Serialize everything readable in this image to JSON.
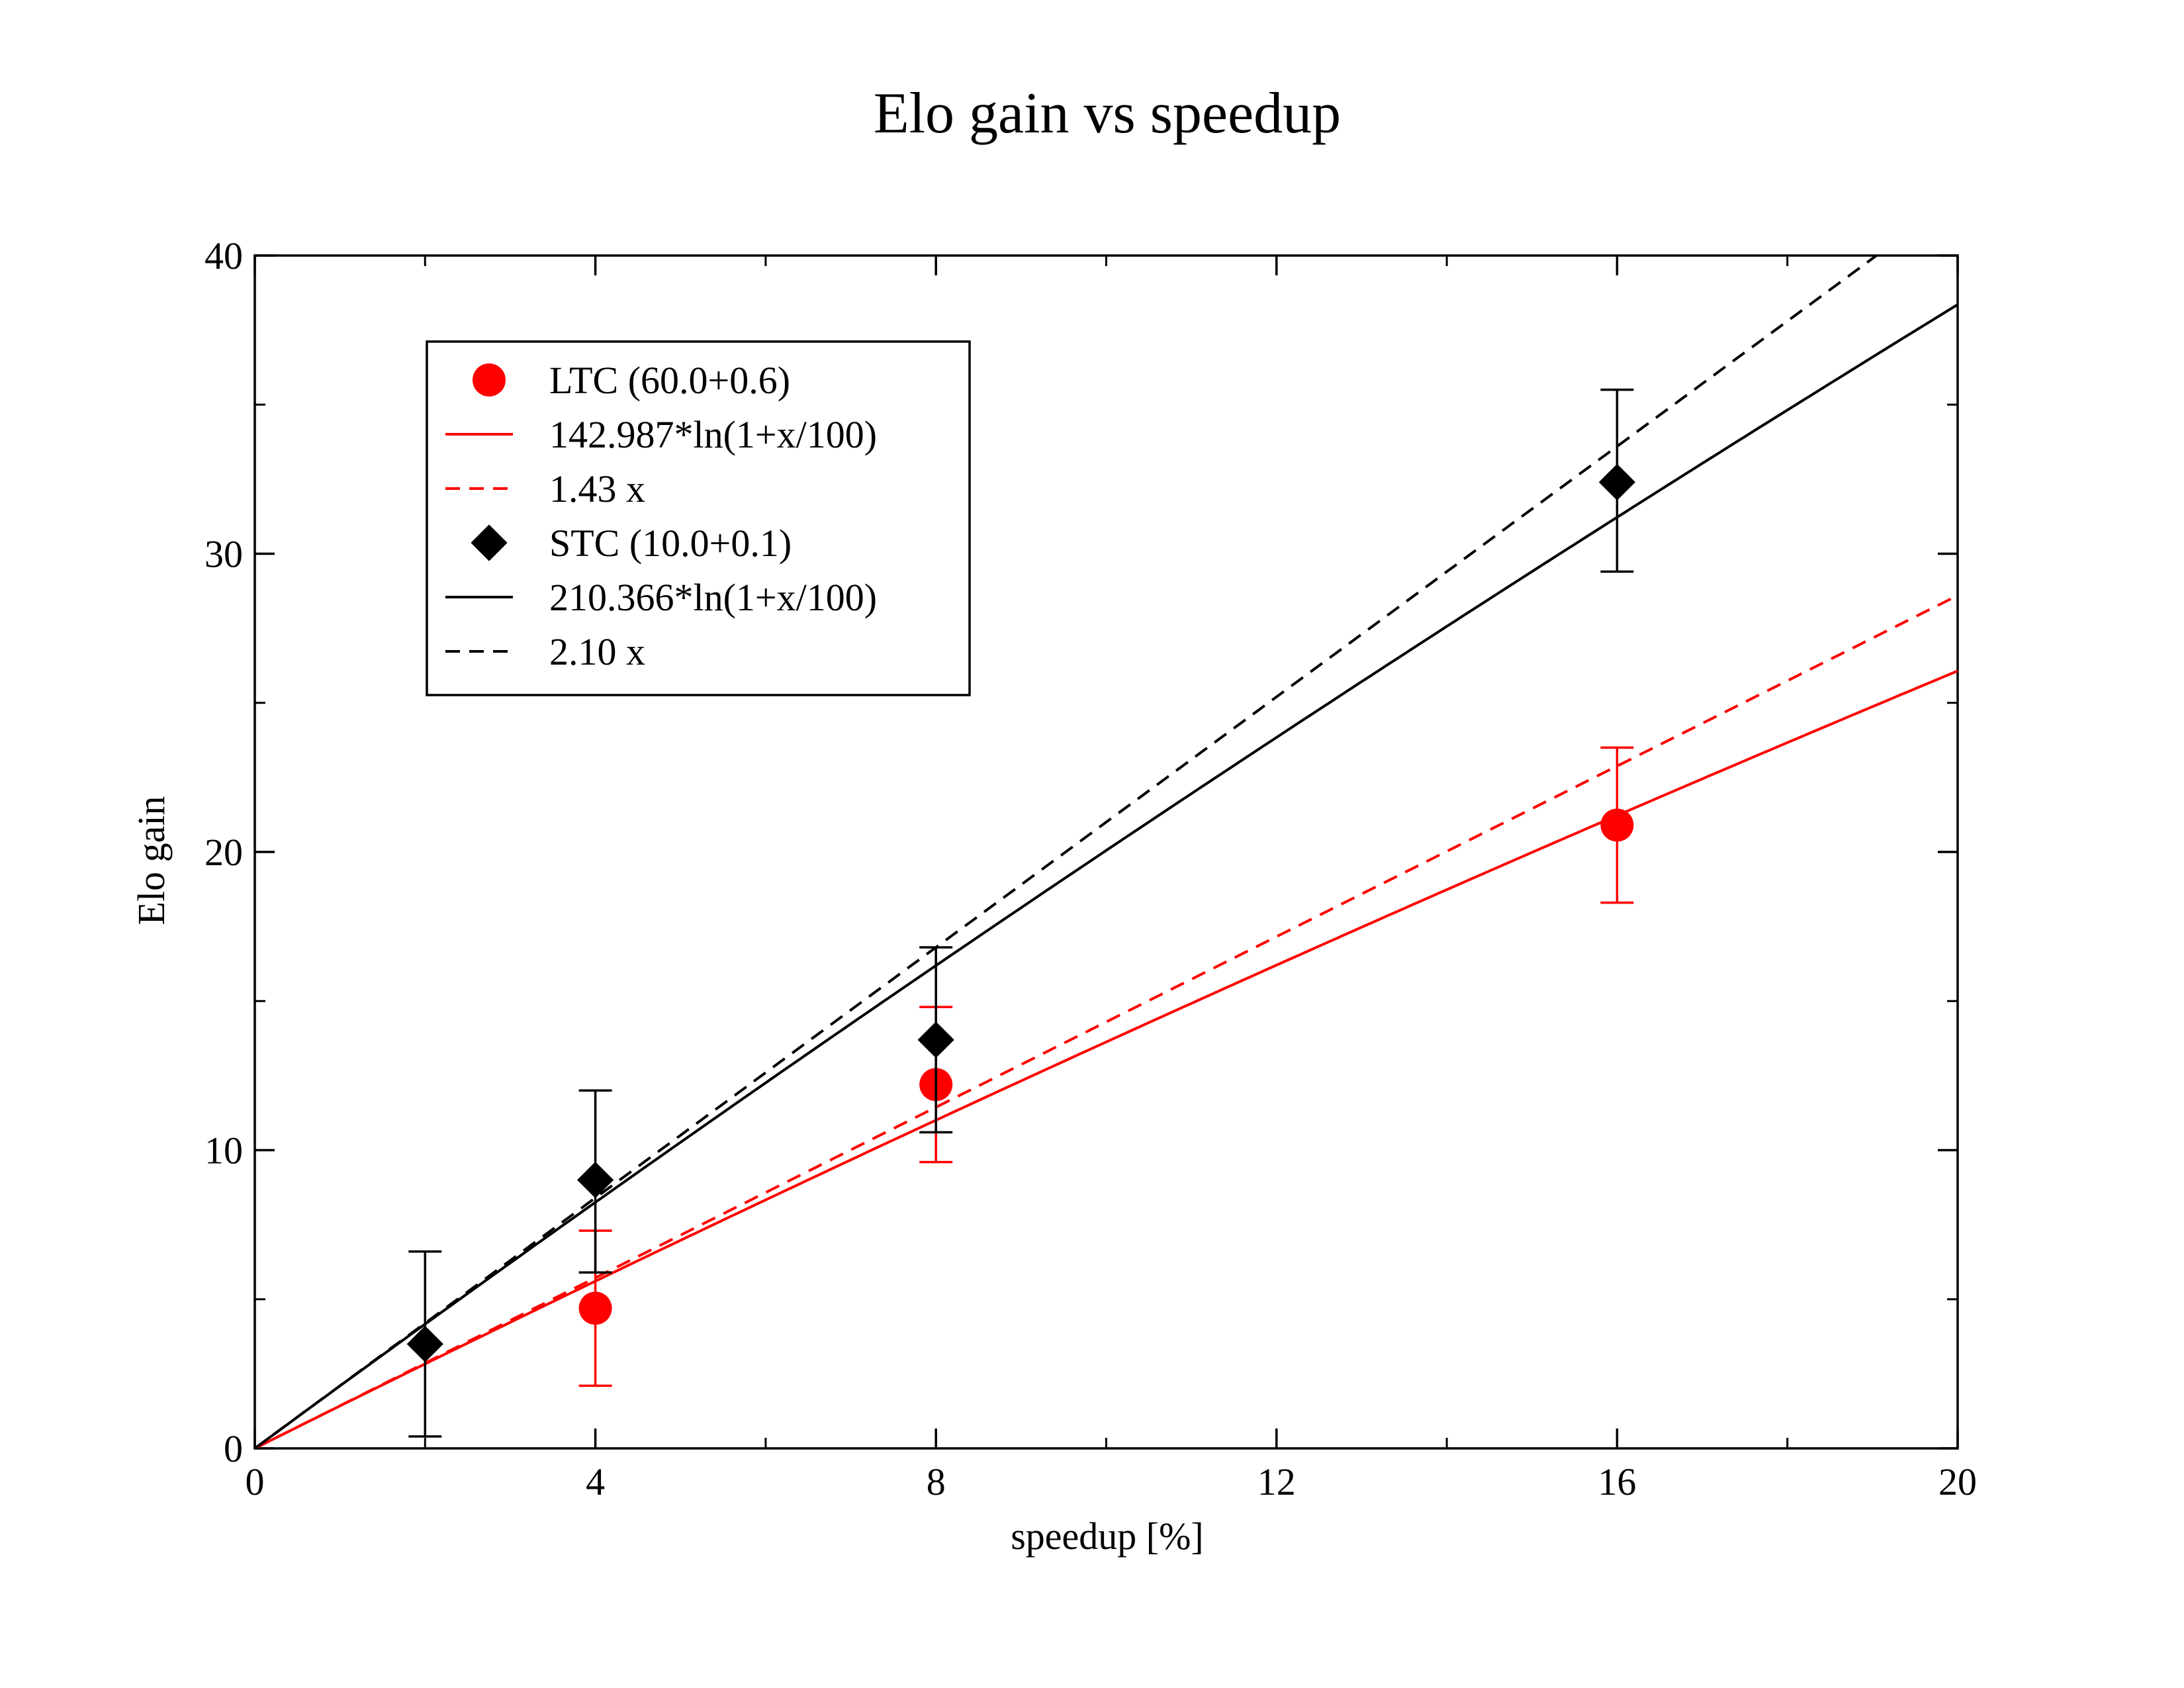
{
  "chart_data": {
    "type": "scatter",
    "title": "Elo gain vs speedup",
    "xlabel": "speedup [%]",
    "ylabel": "Elo gain",
    "xlim": [
      0,
      20
    ],
    "ylim": [
      0,
      40
    ],
    "xticks": [
      0,
      4,
      8,
      12,
      16,
      20
    ],
    "yticks": [
      0,
      10,
      20,
      30,
      40
    ],
    "grid": false,
    "legend_position": "top-left",
    "series": [
      {
        "name": "LTC (60.0+0.6)",
        "kind": "points",
        "marker": "circle",
        "color": "#ff0000",
        "x": [
          4,
          8,
          16
        ],
        "y": [
          4.7,
          12.2,
          20.9
        ],
        "err_low": [
          2.1,
          9.6,
          18.3
        ],
        "err_high": [
          7.3,
          14.8,
          23.5
        ]
      },
      {
        "name": "142.987*ln(1+x/100)",
        "kind": "fit",
        "style": "solid",
        "color": "#ff0000",
        "coef": 142.987,
        "form": "log"
      },
      {
        "name": "1.43 x",
        "kind": "fit",
        "style": "dashed",
        "color": "#ff0000",
        "coef": 1.43,
        "form": "linear"
      },
      {
        "name": "STC (10.0+0.1)",
        "kind": "points",
        "marker": "diamond",
        "color": "#000000",
        "x": [
          2,
          4,
          8,
          16
        ],
        "y": [
          3.5,
          9.0,
          13.7,
          32.4
        ],
        "err_low": [
          0.4,
          5.9,
          10.6,
          29.4
        ],
        "err_high": [
          6.6,
          12.0,
          16.8,
          35.5
        ]
      },
      {
        "name": "210.366*ln(1+x/100)",
        "kind": "fit",
        "style": "solid",
        "color": "#000000",
        "coef": 210.366,
        "form": "log"
      },
      {
        "name": "2.10 x",
        "kind": "fit",
        "style": "dashed",
        "color": "#000000",
        "coef": 2.1,
        "form": "linear"
      }
    ]
  }
}
